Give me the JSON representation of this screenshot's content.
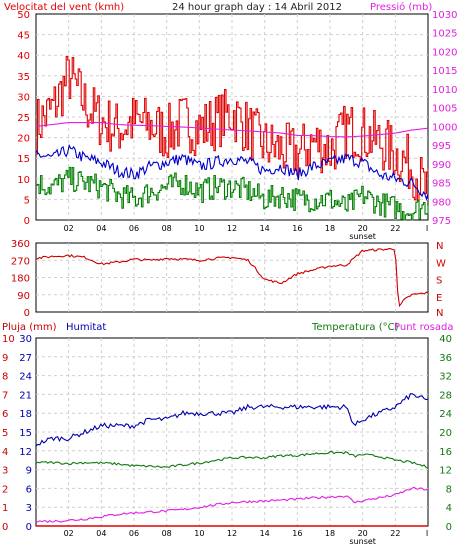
{
  "header": {
    "wind_label": "Velocitat del vent (kmh)",
    "title": "24 hour graph day : 14 Abril 2012",
    "pressure_label": "Pressió (mb)"
  },
  "bottom_header": {
    "rain_label": "Pluja (mm)",
    "humidity_label": "Humitat",
    "temperature_label": "Temperatura (°C)",
    "dewpoint_label": "Punt rosada"
  },
  "time_axis": {
    "ticks": [
      "02",
      "04",
      "06",
      "08",
      "10",
      "12",
      "14",
      "16",
      "18",
      "20",
      "22"
    ],
    "sunset_label": "sunset",
    "end_mark": "I"
  },
  "colors": {
    "wind_gust": "#e00000",
    "wind_avg": "#0000cc",
    "wind_min": "#008000",
    "pressure": "#e020e0",
    "direction": "#cc0000",
    "humidity": "#0000aa",
    "temperature": "#117a11",
    "dewpoint": "#e020e0",
    "rain": "#dd0000"
  },
  "chart_data": [
    {
      "type": "line",
      "name": "wind-pressure",
      "x": [
        0,
        1,
        2,
        3,
        4,
        5,
        6,
        7,
        8,
        9,
        10,
        11,
        12,
        13,
        14,
        15,
        16,
        17,
        18,
        19,
        20,
        21,
        22,
        23,
        24
      ],
      "left_axis": {
        "label": "Velocitat del vent (kmh)",
        "ticks": [
          0,
          5,
          10,
          15,
          20,
          25,
          30,
          35,
          40,
          45,
          50
        ],
        "ylim": [
          0,
          50
        ]
      },
      "right_axis": {
        "label": "Pressió (mb)",
        "ticks": [
          975,
          980,
          985,
          990,
          995,
          1000,
          1005,
          1010,
          1015,
          1020,
          1025,
          1030
        ],
        "ylim": [
          975,
          1030
        ]
      },
      "series": [
        {
          "axis": "left",
          "color": "#e00000",
          "values": [
            23,
            27,
            35,
            28,
            24,
            22,
            24,
            23,
            21,
            24,
            22,
            24,
            26,
            22,
            18,
            17,
            16,
            19,
            17,
            22,
            21,
            19,
            16,
            13,
            6
          ]
        },
        {
          "axis": "left",
          "color": "#0000cc",
          "values": [
            16,
            15,
            17,
            15,
            14,
            12,
            11,
            13,
            14,
            15,
            13,
            14,
            15,
            14,
            12,
            13,
            11,
            13,
            14,
            15,
            14,
            11,
            10,
            9,
            6
          ]
        },
        {
          "axis": "left",
          "color": "#008000",
          "values": [
            9,
            8,
            10,
            9,
            8,
            6,
            5,
            7,
            8,
            9,
            7,
            8,
            8,
            7,
            5,
            6,
            5,
            5,
            5,
            3,
            6,
            4,
            3,
            2,
            4
          ]
        },
        {
          "axis": "right",
          "color": "#e020e0",
          "values": [
            1000,
            1000.5,
            1001,
            1001,
            1001,
            1000.5,
            1000.3,
            1000.2,
            1000,
            999.8,
            999.6,
            999.3,
            999,
            998.8,
            998.5,
            998.2,
            997.6,
            997.5,
            997.3,
            997.2,
            997.4,
            997.8,
            998.2,
            999,
            999.5
          ]
        }
      ]
    },
    {
      "type": "line",
      "name": "wind-direction",
      "x": [
        0,
        1,
        2,
        3,
        4,
        5,
        6,
        7,
        8,
        9,
        10,
        11,
        12,
        13,
        14,
        15,
        16,
        17,
        18,
        19,
        20,
        21,
        22,
        22.2,
        22.5,
        23,
        24
      ],
      "ylim": [
        0,
        360
      ],
      "left_ticks": [
        0,
        90,
        180,
        270,
        360
      ],
      "right_labels": [
        "N",
        "W",
        "S",
        "E",
        "N"
      ],
      "series": [
        {
          "color": "#cc0000",
          "values": [
            280,
            290,
            295,
            285,
            250,
            260,
            275,
            270,
            280,
            275,
            270,
            280,
            285,
            270,
            170,
            150,
            200,
            220,
            240,
            245,
            320,
            325,
            330,
            20,
            60,
            90,
            100
          ]
        }
      ]
    },
    {
      "type": "line",
      "name": "rain-humidity-temperature",
      "x": [
        0,
        1,
        2,
        3,
        4,
        5,
        6,
        7,
        8,
        9,
        10,
        11,
        12,
        13,
        14,
        15,
        16,
        17,
        18,
        19,
        19.5,
        20,
        21,
        22,
        23,
        24
      ],
      "left_outer_ticks": [
        0,
        1,
        2,
        3,
        4,
        5,
        6,
        7,
        8,
        9,
        10
      ],
      "left_inner_ticks": [
        0,
        3,
        6,
        9,
        12,
        15,
        18,
        21,
        24,
        27,
        30
      ],
      "left_inner_ylim": [
        0,
        30
      ],
      "right_ticks": [
        0,
        4,
        8,
        12,
        16,
        20,
        24,
        28,
        32,
        36,
        40
      ],
      "right_ylim": [
        0,
        40
      ],
      "series": [
        {
          "axis": "left_inner",
          "color": "#0000aa",
          "values": [
            13,
            14,
            14,
            15,
            16,
            16,
            16,
            17,
            17,
            18,
            18,
            18,
            18,
            19,
            19,
            19,
            19,
            19,
            19,
            19,
            16,
            17,
            18,
            19,
            21,
            20
          ]
        },
        {
          "axis": "right",
          "color": "#117a11",
          "values": [
            13.5,
            13.5,
            13.3,
            13.5,
            13.4,
            13.2,
            12.8,
            12.7,
            12.5,
            13,
            13.4,
            14,
            14.5,
            14.6,
            14.5,
            15,
            15,
            15.4,
            15.6,
            15.6,
            14.8,
            15.2,
            14.8,
            14,
            13.5,
            12.5
          ]
        },
        {
          "axis": "right",
          "color": "#e020e0",
          "values": [
            1,
            1,
            1.2,
            1.5,
            2,
            2.5,
            2.8,
            3,
            3.2,
            3.5,
            4,
            4.5,
            5,
            5.2,
            5.3,
            5.5,
            5.7,
            6,
            6.2,
            6.4,
            5,
            5.4,
            6,
            6.6,
            8,
            7.8
          ]
        },
        {
          "axis": "left_outer",
          "color": "#dd0000",
          "values": [
            0,
            0,
            0,
            0,
            0,
            0,
            0,
            0,
            0,
            0,
            0,
            0,
            0,
            0,
            0,
            0,
            0,
            0,
            0,
            0,
            0,
            0,
            0,
            0,
            0,
            0
          ]
        }
      ]
    }
  ]
}
